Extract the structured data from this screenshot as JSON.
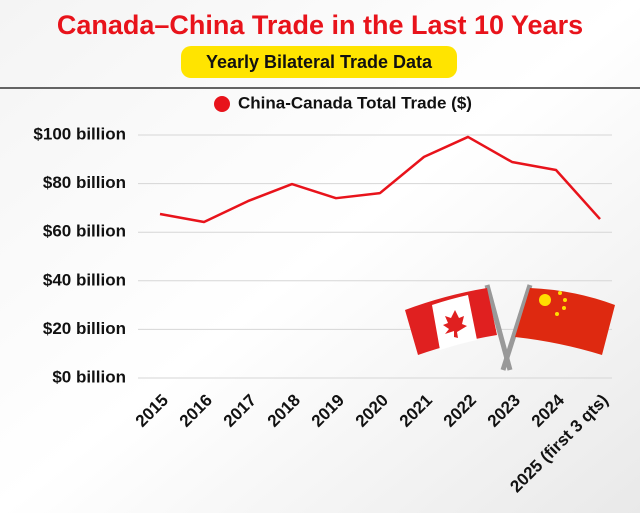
{
  "chart_data": {
    "type": "line",
    "title": "Canada–China Trade in the Last 10 Years",
    "subtitle": "Yearly Bilateral Trade Data",
    "categories": [
      "2015",
      "2016",
      "2017",
      "2018",
      "2019",
      "2020",
      "2021",
      "2022",
      "2023",
      "2024",
      "2025 (first 3 qts)"
    ],
    "series": [
      {
        "name": "China-Canada Total Trade ($)",
        "color": "#e8131b",
        "values": [
          67.5,
          64.2,
          72.8,
          79.8,
          74,
          76.1,
          91,
          99.2,
          88.9,
          85.6,
          65.4
        ]
      }
    ],
    "ylim": [
      0,
      100
    ],
    "yticks": [
      {
        "value": 0,
        "label": "$0 billion"
      },
      {
        "value": 20,
        "label": "$20 billion"
      },
      {
        "value": 40,
        "label": "$40 billion"
      },
      {
        "value": 60,
        "label": "$60 billion"
      },
      {
        "value": 80,
        "label": "$80 billion"
      },
      {
        "value": 100,
        "label": "$100 billion"
      }
    ],
    "grid": true,
    "legend": "top"
  }
}
